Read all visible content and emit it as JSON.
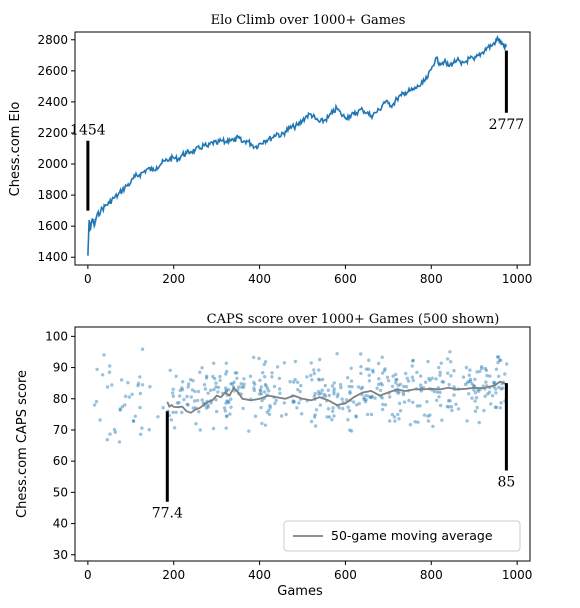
{
  "chart_data": [
    {
      "type": "line",
      "title": "Elo Climb over 1000+ Games",
      "xlabel": "",
      "ylabel": "Chess.com Elo",
      "xlim": [
        -30,
        1030
      ],
      "ylim": [
        1350,
        2850
      ],
      "xticks": [
        0,
        200,
        400,
        600,
        800,
        1000
      ],
      "yticks": [
        1400,
        1600,
        1800,
        2000,
        2200,
        2400,
        2600,
        2800
      ],
      "color": "#1f77b4",
      "series": [
        {
          "x": [
            0,
            3,
            6,
            10,
            15,
            20,
            30,
            40,
            50,
            60,
            70,
            80,
            90,
            100,
            110,
            120,
            130,
            140,
            150,
            160,
            170,
            180,
            190,
            200,
            210,
            220,
            230,
            240,
            250,
            260,
            270,
            280,
            290,
            300,
            310,
            320,
            330,
            340,
            350,
            360,
            370,
            380,
            390,
            400,
            410,
            420,
            430,
            440,
            450,
            460,
            470,
            480,
            490,
            500,
            510,
            520,
            530,
            540,
            550,
            560,
            570,
            580,
            590,
            600,
            610,
            620,
            630,
            640,
            650,
            660,
            670,
            680,
            690,
            700,
            710,
            720,
            730,
            740,
            750,
            760,
            770,
            780,
            790,
            800,
            810,
            820,
            830,
            840,
            850,
            860,
            870,
            880,
            890,
            900,
            910,
            920,
            930,
            940,
            950,
            955,
            960,
            965,
            970,
            975
          ],
          "y": [
            1410,
            1640,
            1580,
            1650,
            1600,
            1660,
            1700,
            1730,
            1750,
            1780,
            1800,
            1830,
            1860,
            1880,
            1920,
            1930,
            1950,
            1970,
            1960,
            1980,
            2000,
            2020,
            2030,
            2040,
            2030,
            2060,
            2070,
            2080,
            2090,
            2100,
            2120,
            2110,
            2140,
            2130,
            2150,
            2140,
            2160,
            2150,
            2170,
            2140,
            2150,
            2130,
            2110,
            2130,
            2150,
            2160,
            2170,
            2200,
            2180,
            2210,
            2230,
            2240,
            2250,
            2280,
            2310,
            2320,
            2290,
            2270,
            2280,
            2300,
            2330,
            2360,
            2320,
            2300,
            2310,
            2320,
            2340,
            2350,
            2330,
            2310,
            2330,
            2350,
            2400,
            2390,
            2380,
            2420,
            2440,
            2460,
            2470,
            2480,
            2500,
            2520,
            2550,
            2610,
            2680,
            2650,
            2660,
            2630,
            2650,
            2670,
            2640,
            2660,
            2680,
            2670,
            2700,
            2720,
            2750,
            2760,
            2790,
            2810,
            2790,
            2770,
            2750,
            2760
          ]
        }
      ],
      "annotations": [
        {
          "label": "1454",
          "x": 0,
          "y_from": 2150,
          "y_to": 1700
        },
        {
          "label": "2777",
          "x": 975,
          "y_from": 2730,
          "y_to": 2330
        }
      ]
    },
    {
      "type": "scatter",
      "title": "CAPS score over 1000+ Games (500 shown)",
      "xlabel": "Games",
      "ylabel": "Chess.com CAPS score",
      "xlim": [
        -30,
        1030
      ],
      "ylim": [
        28,
        103
      ],
      "xticks": [
        0,
        200,
        400,
        600,
        800,
        1000
      ],
      "yticks": [
        30,
        40,
        50,
        60,
        70,
        80,
        90,
        100
      ],
      "point_color": "#1f77b4",
      "line_color": "#808080",
      "legend": {
        "position": "lower-right",
        "entries": [
          "50-game moving average"
        ]
      },
      "moving_average": {
        "name": "50-game moving average",
        "x": [
          185,
          190,
          195,
          200,
          210,
          220,
          230,
          240,
          250,
          260,
          270,
          280,
          290,
          300,
          310,
          320,
          330,
          340,
          350,
          360,
          380,
          400,
          420,
          440,
          460,
          480,
          500,
          520,
          540,
          560,
          580,
          600,
          620,
          640,
          660,
          680,
          700,
          720,
          740,
          760,
          780,
          800,
          820,
          840,
          860,
          880,
          900,
          920,
          940,
          950,
          960,
          970,
          975
        ],
        "y": [
          79,
          77.5,
          78,
          77.4,
          77.3,
          77.5,
          76,
          75.5,
          76.5,
          77,
          78,
          79,
          79.5,
          81,
          80.5,
          82,
          81,
          83.5,
          82,
          80,
          79.5,
          80,
          81,
          80.5,
          80,
          81,
          80,
          79.5,
          80.5,
          79.5,
          78,
          78.5,
          80.5,
          82,
          82.5,
          81,
          82,
          83,
          82.5,
          83,
          83,
          83.2,
          83,
          83.5,
          83,
          83.2,
          83.5,
          83.4,
          84,
          84.5,
          85.5,
          85,
          84.5
        ]
      },
      "points_note_count": 500,
      "annotations": [
        {
          "label": "77.4",
          "x": 185,
          "y_from": 76,
          "y_to": 47
        },
        {
          "label": "85",
          "x": 975,
          "y_from": 85,
          "y_to": 57
        }
      ]
    }
  ]
}
